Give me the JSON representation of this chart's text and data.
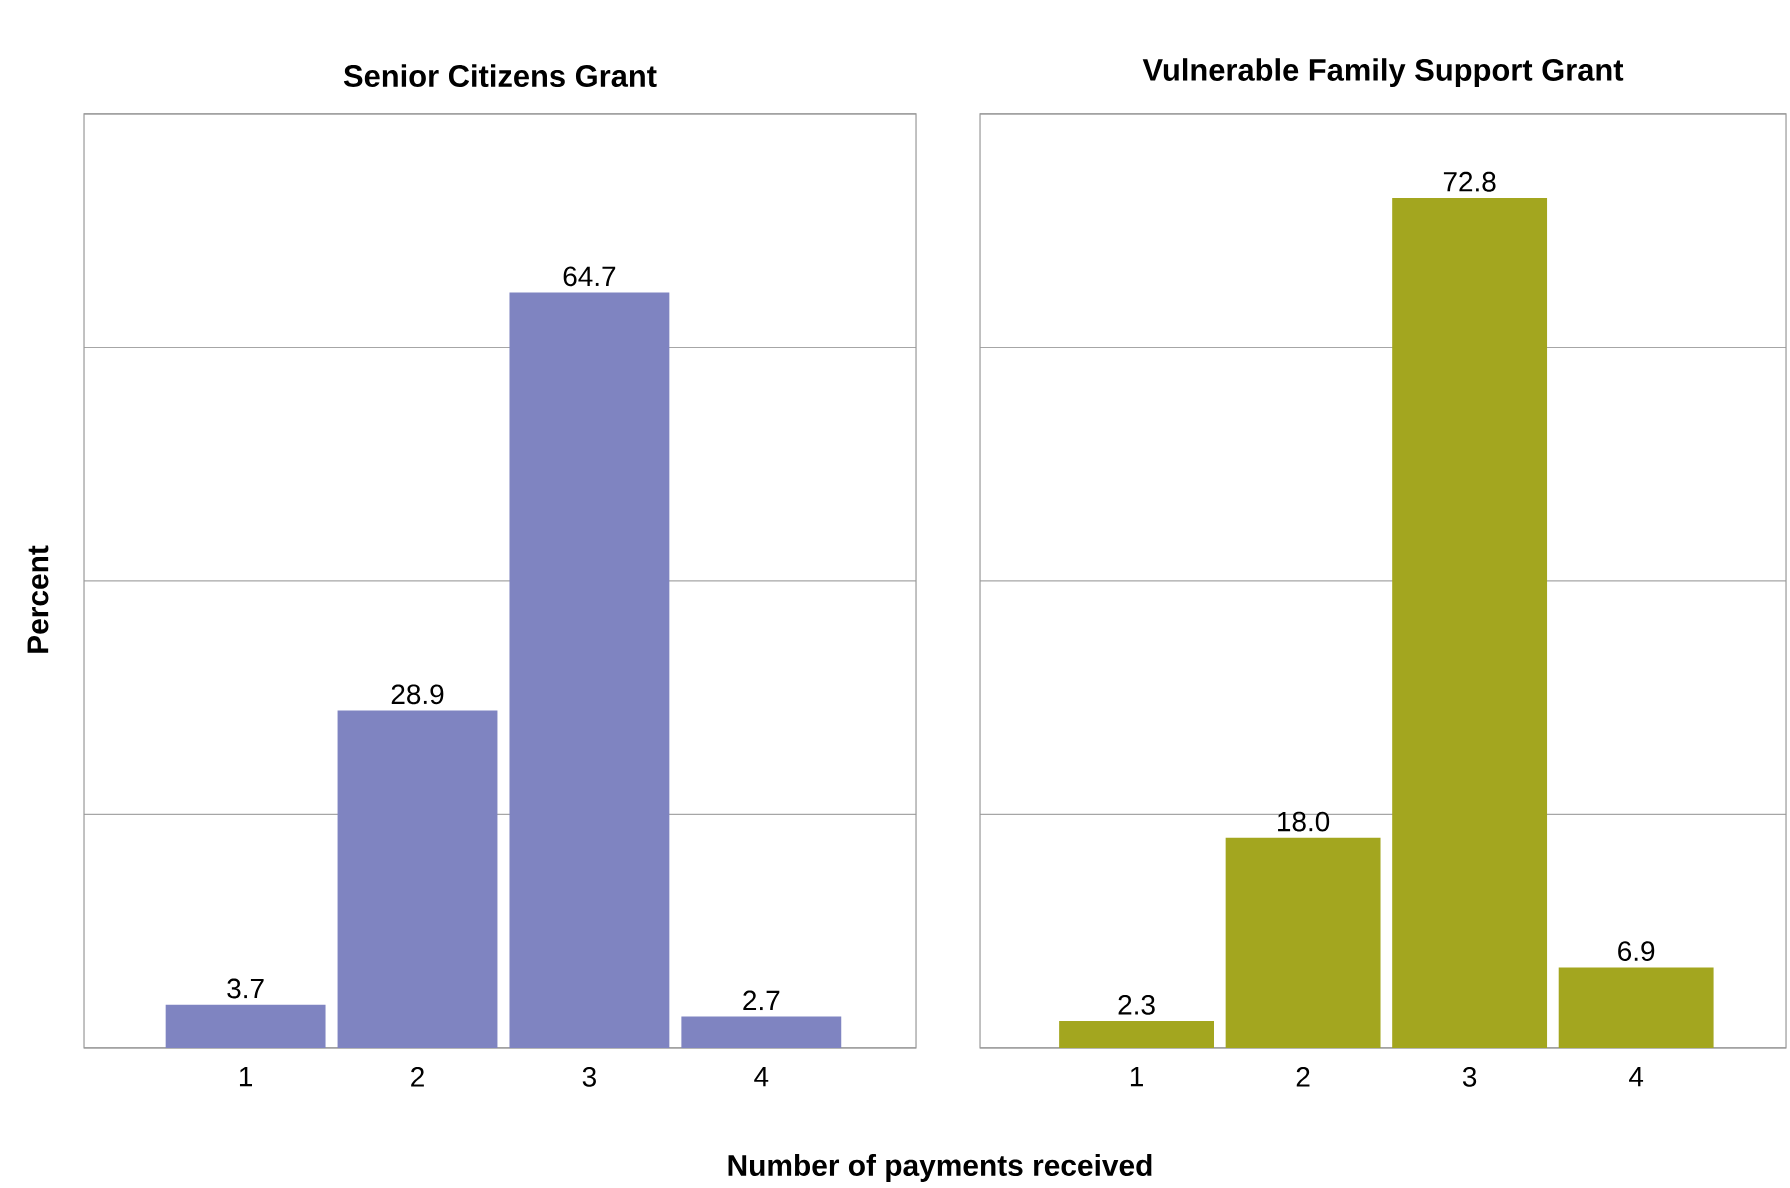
{
  "chart_data": [
    {
      "type": "bar",
      "title": "Senior Citizens Grant",
      "xlabel": "Number of payments received",
      "ylabel": "Percent",
      "categories": [
        "1",
        "2",
        "3",
        "4"
      ],
      "values": [
        3.7,
        28.9,
        64.7,
        2.7
      ],
      "value_labels": [
        "3.7",
        "28.9",
        "64.7",
        "2.7"
      ],
      "color": "#7f84c1",
      "ylim": [
        0,
        80
      ],
      "yticks": [
        {
          "value": 0,
          "label": null
        },
        {
          "value": 20,
          "label": null
        },
        {
          "value": 40,
          "label": null
        },
        {
          "value": 60,
          "label": null
        },
        {
          "value": 80,
          "label": null
        }
      ],
      "grid": "y",
      "tick_labels": "x"
    },
    {
      "type": "bar",
      "title": "Vulnerable Family Support Grant",
      "categories": [
        "1",
        "2",
        "3",
        "4"
      ],
      "values": [
        2.3,
        18.0,
        72.8,
        6.9
      ],
      "value_labels": [
        "2.3",
        "18.0",
        "72.8",
        "6.9"
      ],
      "color": "#a3a61f",
      "ylim": [
        0,
        80
      ],
      "yticks": [
        {
          "value": 0,
          "label": null
        },
        {
          "value": 20,
          "label": null
        },
        {
          "value": 40,
          "label": null
        },
        {
          "value": 60,
          "label": null
        },
        {
          "value": 80,
          "label": null
        }
      ],
      "grid": "y",
      "tick_labels": "x"
    }
  ]
}
